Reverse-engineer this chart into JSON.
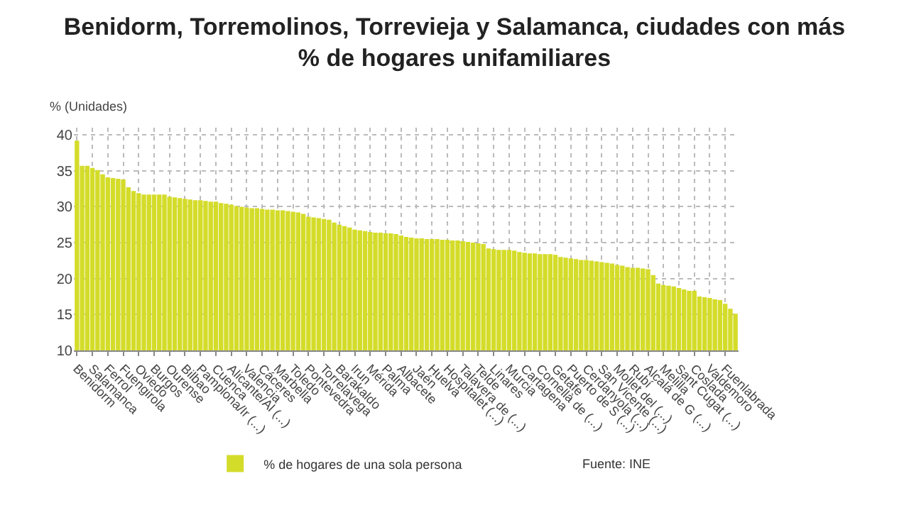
{
  "chart_data": {
    "type": "bar",
    "title": "Benidorm, Torremolinos, Torrevieja y Salamanca, ciudades con más\n% de hogares unifamiliares",
    "ylabel": "% (Unidades)",
    "categories": [
      "Benidorm",
      null,
      null,
      "Salamanca",
      null,
      null,
      "Ferrol",
      null,
      null,
      "Fuengirola",
      null,
      null,
      "Oviedo",
      null,
      null,
      "Burgos",
      null,
      null,
      "Ourense",
      null,
      null,
      "Bilbao",
      null,
      null,
      "Pamplona/Ir (...)",
      null,
      null,
      "Cuenca",
      null,
      null,
      "Alicante/Al (...)",
      null,
      null,
      "Valencia",
      null,
      null,
      "Cáceres",
      null,
      null,
      "Marbella",
      null,
      null,
      "Toledo",
      null,
      null,
      "Pontevedra",
      null,
      null,
      "Torrelavega",
      null,
      null,
      "Barakaldo",
      null,
      null,
      "Irun",
      null,
      null,
      "Mérida",
      null,
      null,
      "Palma",
      null,
      null,
      "Albacete",
      null,
      null,
      "Jaén",
      null,
      null,
      "Huelva",
      null,
      null,
      "Hospitalet (...)",
      null,
      null,
      "Talavera de (...)",
      null,
      null,
      "Telde",
      null,
      null,
      "Linares",
      null,
      null,
      "Murcia",
      null,
      null,
      "Cartagena",
      null,
      null,
      "Cornellà de (...)",
      null,
      null,
      "Getafe",
      null,
      null,
      "Puerto de S (...)",
      null,
      null,
      "Cerdanyola (...)",
      null,
      null,
      "San Vicente (...)",
      null,
      null,
      "Mollet del (...)",
      null,
      null,
      "Rubí",
      null,
      null,
      "Alcalá de G (...)",
      null,
      null,
      "Melilla",
      null,
      null,
      "Sant Cugat (...)",
      null,
      null,
      "Coslada",
      null,
      null,
      "Valdemoro",
      null,
      null,
      "Fuenlabrada",
      null,
      null
    ],
    "series": [
      {
        "name": "% de hogares de una sola persona",
        "color": "#d4dc2a",
        "values": [
          39.2,
          35.7,
          35.7,
          35.4,
          35.1,
          34.5,
          34.1,
          34.0,
          33.9,
          33.8,
          32.7,
          32.2,
          31.9,
          31.7,
          31.7,
          31.7,
          31.7,
          31.7,
          31.4,
          31.3,
          31.2,
          31.1,
          31.0,
          30.9,
          30.9,
          30.8,
          30.7,
          30.7,
          30.5,
          30.4,
          30.3,
          30.1,
          30.0,
          29.9,
          29.8,
          29.8,
          29.7,
          29.6,
          29.6,
          29.5,
          29.5,
          29.4,
          29.3,
          29.2,
          29.0,
          28.6,
          28.5,
          28.4,
          28.3,
          28.2,
          27.8,
          27.5,
          27.3,
          27.1,
          26.8,
          26.7,
          26.6,
          26.5,
          26.4,
          26.4,
          26.3,
          26.3,
          26.2,
          26.0,
          25.8,
          25.7,
          25.6,
          25.6,
          25.5,
          25.5,
          25.5,
          25.4,
          25.4,
          25.3,
          25.3,
          25.2,
          25.1,
          25.0,
          24.9,
          24.8,
          24.2,
          24.1,
          24.0,
          24.0,
          24.0,
          23.9,
          23.7,
          23.6,
          23.5,
          23.5,
          23.4,
          23.4,
          23.4,
          23.3,
          23.0,
          22.9,
          22.8,
          22.7,
          22.6,
          22.6,
          22.5,
          22.4,
          22.3,
          22.2,
          22.1,
          21.9,
          21.8,
          21.6,
          21.5,
          21.5,
          21.4,
          21.3,
          20.5,
          19.3,
          19.1,
          19.0,
          18.9,
          18.7,
          18.5,
          18.3,
          18.3,
          17.5,
          17.4,
          17.3,
          17.1,
          17.0,
          16.5,
          15.8,
          15.1
        ]
      }
    ],
    "ylim": [
      10,
      41
    ],
    "yticks": [
      10,
      15,
      20,
      25,
      30,
      35,
      40
    ],
    "grid": true,
    "legend": "bottom",
    "annotations": [
      "Fuente: INE"
    ]
  }
}
